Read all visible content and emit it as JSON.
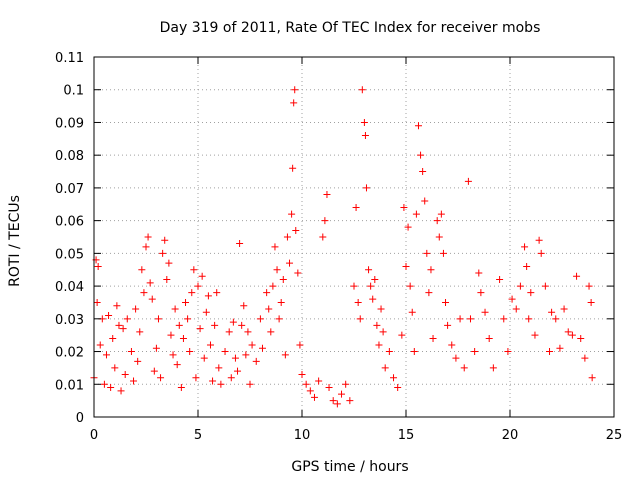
{
  "chart_data": {
    "type": "scatter",
    "title": "Day 319 of 2011, Rate Of TEC Index for receiver mobs",
    "xlabel": "GPS time / hours",
    "ylabel": "ROTI / TECUs",
    "xlim": [
      0,
      25
    ],
    "ylim": [
      0,
      0.11
    ],
    "x_ticks": [
      "0",
      "5",
      "10",
      "15",
      "20",
      "25"
    ],
    "y_ticks": [
      "0",
      "0.01",
      "0.02",
      "0.03",
      "0.04",
      "0.05",
      "0.06",
      "0.07",
      "0.08",
      "0.09",
      "0.1",
      "0.11"
    ],
    "grid": true,
    "marker": "plus",
    "marker_color": "#ff0000",
    "series": [
      {
        "color": "#ff0000",
        "points": [
          [
            0.0,
            0.012
          ],
          [
            0.1,
            0.048
          ],
          [
            0.15,
            0.035
          ],
          [
            0.2,
            0.046
          ],
          [
            0.3,
            0.022
          ],
          [
            0.4,
            0.03
          ],
          [
            0.5,
            0.01
          ],
          [
            0.6,
            0.019
          ],
          [
            0.7,
            0.031
          ],
          [
            0.8,
            0.009
          ],
          [
            0.9,
            0.024
          ],
          [
            1.0,
            0.015
          ],
          [
            1.1,
            0.034
          ],
          [
            1.2,
            0.028
          ],
          [
            1.3,
            0.008
          ],
          [
            1.4,
            0.027
          ],
          [
            1.5,
            0.013
          ],
          [
            1.6,
            0.03
          ],
          [
            1.8,
            0.02
          ],
          [
            1.9,
            0.011
          ],
          [
            2.0,
            0.033
          ],
          [
            2.1,
            0.017
          ],
          [
            2.2,
            0.026
          ],
          [
            2.3,
            0.045
          ],
          [
            2.4,
            0.038
          ],
          [
            2.5,
            0.052
          ],
          [
            2.6,
            0.055
          ],
          [
            2.7,
            0.041
          ],
          [
            2.8,
            0.036
          ],
          [
            2.9,
            0.014
          ],
          [
            3.0,
            0.021
          ],
          [
            3.1,
            0.03
          ],
          [
            3.2,
            0.012
          ],
          [
            3.3,
            0.05
          ],
          [
            3.4,
            0.054
          ],
          [
            3.5,
            0.042
          ],
          [
            3.6,
            0.047
          ],
          [
            3.7,
            0.025
          ],
          [
            3.8,
            0.019
          ],
          [
            3.9,
            0.033
          ],
          [
            4.0,
            0.016
          ],
          [
            4.1,
            0.028
          ],
          [
            4.2,
            0.009
          ],
          [
            4.3,
            0.024
          ],
          [
            4.4,
            0.035
          ],
          [
            4.5,
            0.03
          ],
          [
            4.6,
            0.02
          ],
          [
            4.7,
            0.038
          ],
          [
            4.8,
            0.045
          ],
          [
            4.9,
            0.012
          ],
          [
            5.0,
            0.04
          ],
          [
            5.1,
            0.027
          ],
          [
            5.2,
            0.043
          ],
          [
            5.3,
            0.018
          ],
          [
            5.4,
            0.032
          ],
          [
            5.5,
            0.037
          ],
          [
            5.6,
            0.022
          ],
          [
            5.7,
            0.011
          ],
          [
            5.8,
            0.028
          ],
          [
            5.9,
            0.038
          ],
          [
            6.0,
            0.015
          ],
          [
            6.1,
            0.01
          ],
          [
            6.3,
            0.02
          ],
          [
            6.5,
            0.026
          ],
          [
            6.6,
            0.012
          ],
          [
            6.7,
            0.029
          ],
          [
            6.8,
            0.018
          ],
          [
            6.9,
            0.014
          ],
          [
            7.0,
            0.053
          ],
          [
            7.1,
            0.028
          ],
          [
            7.2,
            0.034
          ],
          [
            7.3,
            0.019
          ],
          [
            7.4,
            0.026
          ],
          [
            7.5,
            0.01
          ],
          [
            7.6,
            0.022
          ],
          [
            7.8,
            0.017
          ],
          [
            8.0,
            0.03
          ],
          [
            8.1,
            0.021
          ],
          [
            8.3,
            0.038
          ],
          [
            8.4,
            0.033
          ],
          [
            8.5,
            0.026
          ],
          [
            8.6,
            0.04
          ],
          [
            8.7,
            0.052
          ],
          [
            8.8,
            0.045
          ],
          [
            8.9,
            0.03
          ],
          [
            9.0,
            0.035
          ],
          [
            9.1,
            0.042
          ],
          [
            9.2,
            0.019
          ],
          [
            9.3,
            0.055
          ],
          [
            9.4,
            0.047
          ],
          [
            9.5,
            0.062
          ],
          [
            9.55,
            0.076
          ],
          [
            9.6,
            0.096
          ],
          [
            9.65,
            0.1
          ],
          [
            9.7,
            0.057
          ],
          [
            9.8,
            0.044
          ],
          [
            9.9,
            0.022
          ],
          [
            10.0,
            0.013
          ],
          [
            10.2,
            0.01
          ],
          [
            10.4,
            0.008
          ],
          [
            10.6,
            0.006
          ],
          [
            10.8,
            0.011
          ],
          [
            11.0,
            0.055
          ],
          [
            11.1,
            0.06
          ],
          [
            11.2,
            0.068
          ],
          [
            11.3,
            0.009
          ],
          [
            11.5,
            0.005
          ],
          [
            11.7,
            0.004
          ],
          [
            11.9,
            0.007
          ],
          [
            12.1,
            0.01
          ],
          [
            12.3,
            0.005
          ],
          [
            12.5,
            0.04
          ],
          [
            12.6,
            0.064
          ],
          [
            12.7,
            0.035
          ],
          [
            12.8,
            0.03
          ],
          [
            12.9,
            0.1
          ],
          [
            13.0,
            0.09
          ],
          [
            13.05,
            0.086
          ],
          [
            13.1,
            0.07
          ],
          [
            13.2,
            0.045
          ],
          [
            13.3,
            0.04
          ],
          [
            13.4,
            0.036
          ],
          [
            13.5,
            0.042
          ],
          [
            13.6,
            0.028
          ],
          [
            13.7,
            0.022
          ],
          [
            13.8,
            0.033
          ],
          [
            13.9,
            0.026
          ],
          [
            14.0,
            0.015
          ],
          [
            14.2,
            0.02
          ],
          [
            14.4,
            0.012
          ],
          [
            14.6,
            0.009
          ],
          [
            14.8,
            0.025
          ],
          [
            14.9,
            0.064
          ],
          [
            15.0,
            0.046
          ],
          [
            15.1,
            0.058
          ],
          [
            15.2,
            0.04
          ],
          [
            15.3,
            0.032
          ],
          [
            15.4,
            0.02
          ],
          [
            15.5,
            0.062
          ],
          [
            15.6,
            0.089
          ],
          [
            15.7,
            0.08
          ],
          [
            15.8,
            0.075
          ],
          [
            15.9,
            0.066
          ],
          [
            16.0,
            0.05
          ],
          [
            16.1,
            0.038
          ],
          [
            16.2,
            0.045
          ],
          [
            16.3,
            0.024
          ],
          [
            16.5,
            0.06
          ],
          [
            16.6,
            0.055
          ],
          [
            16.7,
            0.062
          ],
          [
            16.8,
            0.05
          ],
          [
            16.9,
            0.035
          ],
          [
            17.0,
            0.028
          ],
          [
            17.2,
            0.022
          ],
          [
            17.4,
            0.018
          ],
          [
            17.6,
            0.03
          ],
          [
            17.8,
            0.015
          ],
          [
            18.0,
            0.072
          ],
          [
            18.1,
            0.03
          ],
          [
            18.3,
            0.02
          ],
          [
            18.5,
            0.044
          ],
          [
            18.6,
            0.038
          ],
          [
            18.8,
            0.032
          ],
          [
            19.0,
            0.024
          ],
          [
            19.2,
            0.015
          ],
          [
            19.5,
            0.042
          ],
          [
            19.7,
            0.03
          ],
          [
            19.9,
            0.02
          ],
          [
            20.1,
            0.036
          ],
          [
            20.3,
            0.033
          ],
          [
            20.5,
            0.04
          ],
          [
            20.7,
            0.052
          ],
          [
            20.8,
            0.046
          ],
          [
            20.9,
            0.03
          ],
          [
            21.0,
            0.038
          ],
          [
            21.2,
            0.025
          ],
          [
            21.4,
            0.054
          ],
          [
            21.5,
            0.05
          ],
          [
            21.7,
            0.04
          ],
          [
            21.9,
            0.02
          ],
          [
            22.0,
            0.032
          ],
          [
            22.2,
            0.03
          ],
          [
            22.4,
            0.021
          ],
          [
            22.6,
            0.033
          ],
          [
            22.8,
            0.026
          ],
          [
            23.0,
            0.025
          ],
          [
            23.2,
            0.043
          ],
          [
            23.4,
            0.024
          ],
          [
            23.6,
            0.018
          ],
          [
            23.8,
            0.04
          ],
          [
            23.9,
            0.035
          ],
          [
            23.95,
            0.012
          ]
        ]
      }
    ]
  }
}
